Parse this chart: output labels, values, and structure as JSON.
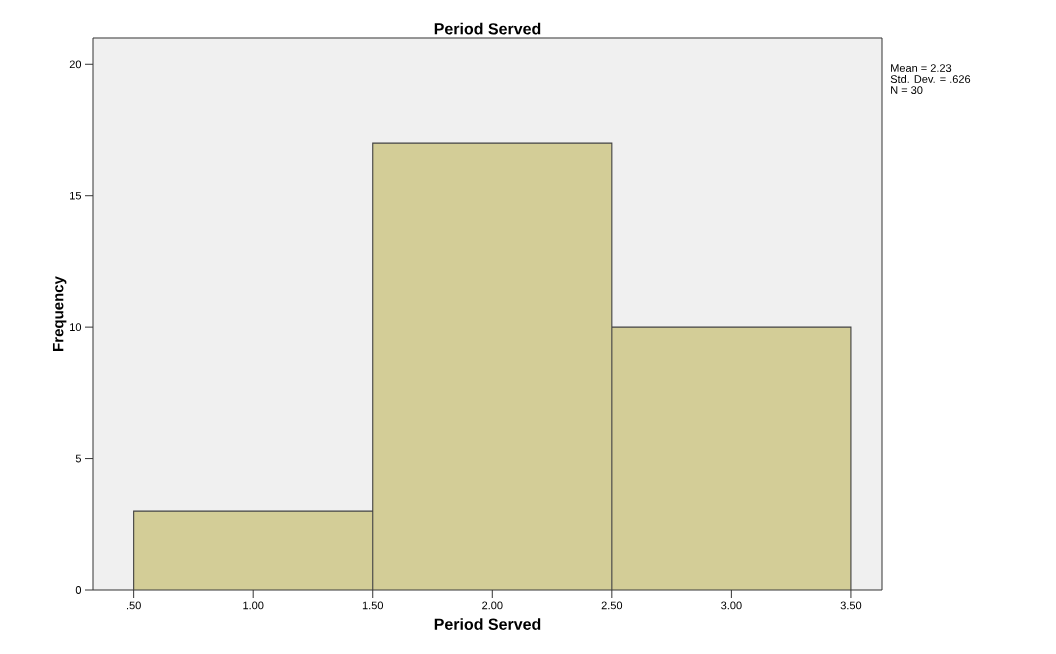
{
  "chart_data": {
    "type": "histogram",
    "title": "Period Served",
    "xlabel": "Period Served",
    "ylabel": "Frequency",
    "bins": [
      0.5,
      1.5,
      2.5,
      3.5
    ],
    "values": [
      3,
      17,
      10
    ],
    "color": "#d3cd97",
    "xlim": [
      0.33,
      3.63
    ],
    "ylim": [
      0,
      21
    ],
    "xticks": [
      {
        "value": 0.5,
        "label": ".50"
      },
      {
        "value": 1.0,
        "label": "1.00"
      },
      {
        "value": 1.5,
        "label": "1.50"
      },
      {
        "value": 2.0,
        "label": "2.00"
      },
      {
        "value": 2.5,
        "label": "2.50"
      },
      {
        "value": 3.0,
        "label": "3.00"
      },
      {
        "value": 3.5,
        "label": "3.50"
      }
    ],
    "yticks": [
      0,
      5,
      10,
      15,
      20
    ],
    "annotations": [
      "Mean = 2.23",
      "Std. Dev. = .626",
      "N = 30"
    ]
  }
}
